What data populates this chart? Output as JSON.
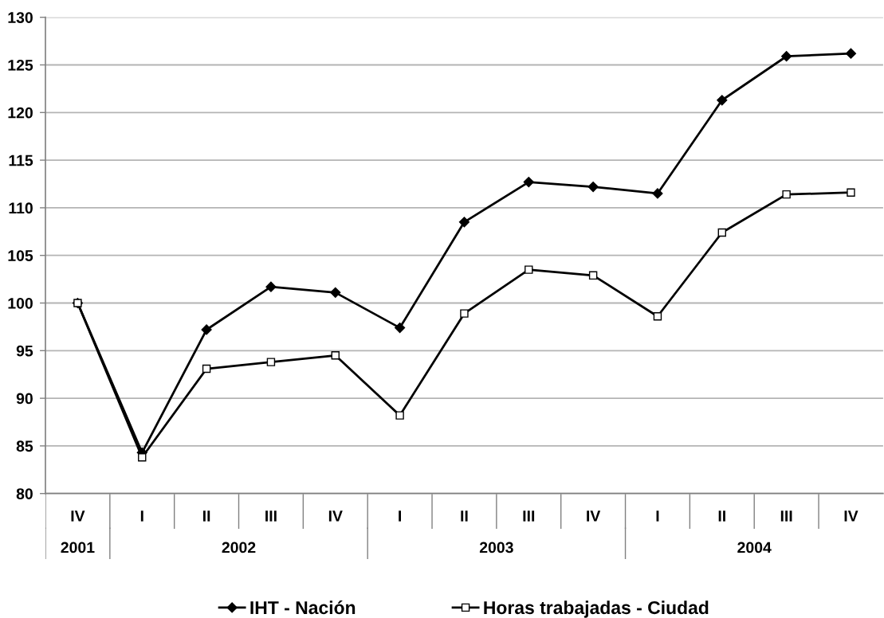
{
  "chart_data": {
    "type": "line",
    "categories": [
      "IV",
      "I",
      "II",
      "III",
      "IV",
      "I",
      "II",
      "III",
      "IV",
      "I",
      "II",
      "III",
      "IV"
    ],
    "series": [
      {
        "name": "IHT - Nación",
        "color": "#000000",
        "marker": "diamond",
        "values": [
          100,
          84.3,
          97.2,
          101.7,
          101.1,
          97.4,
          108.5,
          112.7,
          112.2,
          111.5,
          121.3,
          125.9,
          126.2
        ]
      },
      {
        "name": "Horas trabajadas - Ciudad",
        "color": "#000000",
        "marker": "square",
        "values": [
          100,
          83.8,
          93.1,
          93.8,
          94.5,
          88.2,
          98.9,
          103.5,
          102.9,
          98.6,
          107.4,
          111.4,
          111.6
        ]
      }
    ],
    "ylim": [
      80,
      130
    ],
    "yticks": [
      80,
      85,
      90,
      95,
      100,
      105,
      110,
      115,
      120,
      125,
      130
    ],
    "grid": "y",
    "legend": "bottom",
    "annotations": [
      "2001",
      "2002",
      "2003",
      "2004"
    ]
  }
}
